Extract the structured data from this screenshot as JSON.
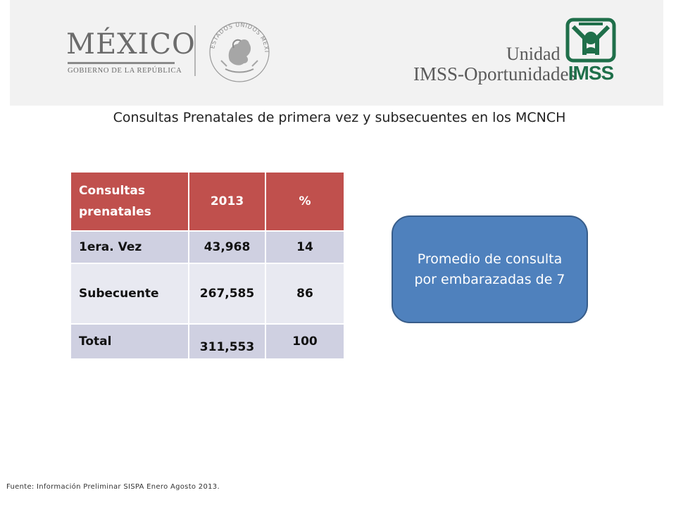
{
  "header": {
    "gobierno": {
      "word": "MÉXICO",
      "subtitle": "GOBIERNO DE LA REPÚBLICA"
    },
    "seal_text": "ESTADOS UNIDOS MEXICANOS",
    "unidad": {
      "line1": "Unidad",
      "line2": "IMSS-Oportunidades"
    },
    "imss_word": "IMSS",
    "colors": {
      "header_bg": "#f2f2f2",
      "imss_green": "#1f6f4a",
      "logo_gray": "#6b6b6b"
    }
  },
  "title": "Consultas Prenatales de primera vez y subsecuentes en los MCNCH",
  "table": {
    "headers": [
      "Consultas prenatales",
      "2013",
      "%"
    ],
    "rows": [
      {
        "label": "1era. Vez",
        "value": "43,968",
        "pct": "14"
      },
      {
        "label": "Subecuente",
        "value": "267,585",
        "pct": "86"
      },
      {
        "label": "Total",
        "value": "311,553",
        "pct": "100"
      }
    ],
    "colors": {
      "header": "#c0504d",
      "band_dark": "#cfd0e1",
      "band_light": "#e8e9f1"
    }
  },
  "callout": {
    "text": "Promedio de consulta por embarazadas de 7",
    "color": "#4f81bd"
  },
  "source": "Fuente: Información Preliminar SISPA Enero Agosto 2013."
}
